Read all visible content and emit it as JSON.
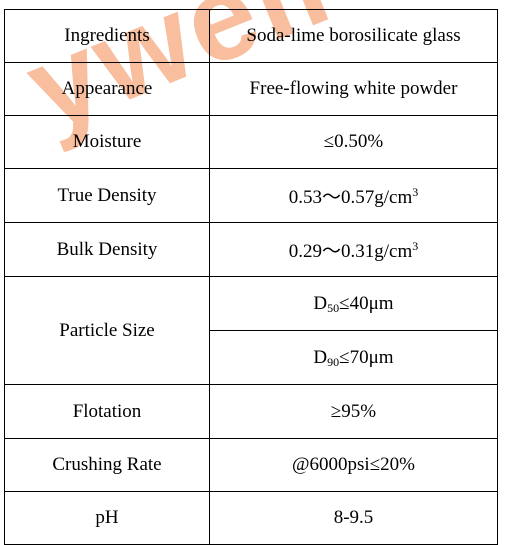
{
  "watermark": {
    "text": "ywell",
    "color": "#f06e28"
  },
  "table": {
    "ingredients": {
      "label": "Ingredients",
      "value": "Soda-lime borosilicate glass"
    },
    "appearance": {
      "label": "Appearance",
      "value": "Free-flowing white powder"
    },
    "moisture": {
      "label": "Moisture",
      "value": "≤0.50%"
    },
    "true_density": {
      "label": "True Density",
      "value": "0.53～0.57g/cm",
      "sup": "3"
    },
    "bulk_density": {
      "label": "Bulk Density",
      "value": "0.29～0.31g/cm",
      "sup": "3"
    },
    "particle_size": {
      "label": "Particle Size",
      "d50": {
        "symbol": "D",
        "sub": "50",
        "value": "≤40μm"
      },
      "d90": {
        "symbol": "D",
        "sub": "90",
        "value": "≤70μm"
      }
    },
    "flotation": {
      "label": "Flotation",
      "value": "≥95%"
    },
    "crushing_rate": {
      "label": "Crushing Rate",
      "value": "@6000psi≤20%"
    },
    "ph": {
      "label": "pH",
      "value": "8-9.5"
    }
  }
}
